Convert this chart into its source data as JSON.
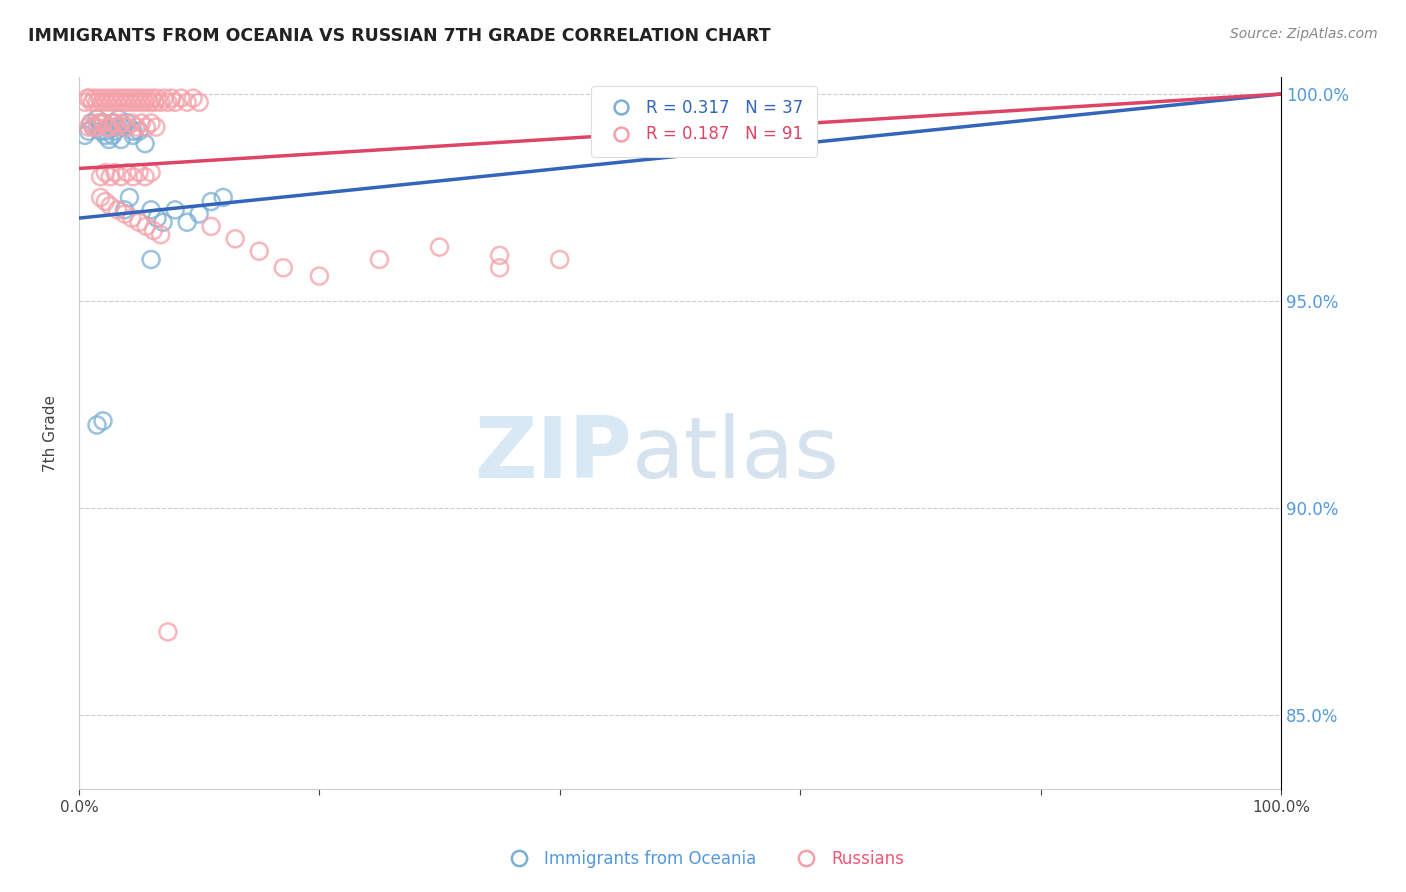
{
  "title": "IMMIGRANTS FROM OCEANIA VS RUSSIAN 7TH GRADE CORRELATION CHART",
  "source": "Source: ZipAtlas.com",
  "ylabel": "7th Grade",
  "legend_entries": [
    "Immigrants from Oceania",
    "Russians"
  ],
  "blue_color": "#7BAFD4",
  "pink_color": "#F4A0A8",
  "blue_line_color": "#3366BB",
  "pink_line_color": "#DD4466",
  "blue_R": 0.317,
  "blue_N": 37,
  "pink_R": 0.187,
  "pink_N": 91,
  "xlim": [
    0,
    1
  ],
  "ylim": [
    0.832,
    1.004
  ],
  "yticks": [
    0.85,
    0.9,
    0.95,
    1.0
  ],
  "blue_line_start_y": 0.97,
  "blue_line_end_y": 1.0,
  "pink_line_start_y": 0.982,
  "pink_line_end_y": 1.0,
  "blue_x": [
    0.005,
    0.008,
    0.01,
    0.012,
    0.015,
    0.018,
    0.02,
    0.022,
    0.025,
    0.028,
    0.03,
    0.033,
    0.036,
    0.04,
    0.045,
    0.05,
    0.055,
    0.06,
    0.065,
    0.07,
    0.08,
    0.09,
    0.1,
    0.11,
    0.12,
    0.035,
    0.025,
    0.018,
    0.022,
    0.03,
    0.038,
    0.015,
    0.02,
    0.042,
    0.06,
    0.028,
    0.045
  ],
  "blue_y": [
    0.99,
    0.991,
    0.993,
    0.992,
    0.994,
    0.991,
    0.993,
    0.99,
    0.989,
    0.993,
    0.991,
    0.994,
    0.992,
    0.993,
    0.99,
    0.991,
    0.988,
    0.972,
    0.97,
    0.969,
    0.972,
    0.969,
    0.971,
    0.974,
    0.975,
    0.989,
    0.992,
    0.993,
    0.991,
    0.992,
    0.972,
    0.92,
    0.921,
    0.975,
    0.96,
    0.99,
    0.991
  ],
  "pink_x": [
    0.005,
    0.007,
    0.009,
    0.011,
    0.013,
    0.015,
    0.017,
    0.019,
    0.021,
    0.023,
    0.025,
    0.027,
    0.029,
    0.031,
    0.033,
    0.035,
    0.037,
    0.039,
    0.041,
    0.043,
    0.045,
    0.047,
    0.049,
    0.051,
    0.053,
    0.055,
    0.057,
    0.059,
    0.061,
    0.063,
    0.065,
    0.068,
    0.071,
    0.074,
    0.077,
    0.08,
    0.085,
    0.09,
    0.095,
    0.1,
    0.008,
    0.012,
    0.016,
    0.02,
    0.024,
    0.028,
    0.032,
    0.036,
    0.04,
    0.044,
    0.048,
    0.052,
    0.056,
    0.06,
    0.064,
    0.01,
    0.015,
    0.02,
    0.025,
    0.03,
    0.11,
    0.13,
    0.15,
    0.17,
    0.2,
    0.25,
    0.3,
    0.35,
    0.4,
    0.35,
    0.018,
    0.022,
    0.026,
    0.03,
    0.035,
    0.04,
    0.045,
    0.05,
    0.055,
    0.06,
    0.018,
    0.022,
    0.026,
    0.032,
    0.038,
    0.044,
    0.05,
    0.056,
    0.062,
    0.068,
    0.074
  ],
  "pink_y": [
    0.998,
    0.999,
    0.999,
    0.998,
    0.999,
    0.998,
    0.999,
    0.998,
    0.999,
    0.998,
    0.999,
    0.998,
    0.999,
    0.998,
    0.999,
    0.998,
    0.999,
    0.998,
    0.999,
    0.998,
    0.999,
    0.998,
    0.999,
    0.998,
    0.999,
    0.998,
    0.999,
    0.998,
    0.999,
    0.998,
    0.999,
    0.998,
    0.999,
    0.998,
    0.999,
    0.998,
    0.999,
    0.998,
    0.999,
    0.998,
    0.992,
    0.992,
    0.993,
    0.993,
    0.992,
    0.993,
    0.992,
    0.993,
    0.992,
    0.993,
    0.992,
    0.993,
    0.992,
    0.993,
    0.992,
    0.993,
    0.992,
    0.993,
    0.992,
    0.993,
    0.968,
    0.965,
    0.962,
    0.958,
    0.956,
    0.96,
    0.963,
    0.961,
    0.96,
    0.958,
    0.98,
    0.981,
    0.98,
    0.981,
    0.98,
    0.981,
    0.98,
    0.981,
    0.98,
    0.981,
    0.975,
    0.974,
    0.973,
    0.972,
    0.971,
    0.97,
    0.969,
    0.968,
    0.967,
    0.966,
    0.87
  ]
}
